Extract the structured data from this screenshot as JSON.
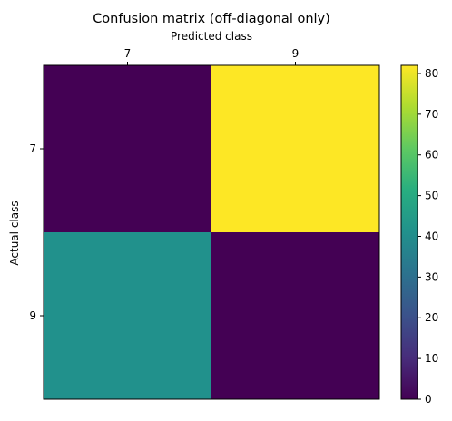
{
  "chart_data": {
    "type": "heatmap",
    "title": "Confusion matrix (off-diagonal only)",
    "xlabel": "Predicted class",
    "ylabel": "Actual class",
    "x_categories": [
      "7",
      "9"
    ],
    "y_categories": [
      "7",
      "9"
    ],
    "values": [
      [
        0,
        82
      ],
      [
        41,
        0
      ]
    ],
    "colormap": "viridis",
    "colorbar": {
      "min": 0,
      "max": 82,
      "ticks": [
        0,
        10,
        20,
        30,
        40,
        50,
        60,
        70,
        80
      ]
    },
    "x_axis_position": "top",
    "grid": false
  }
}
